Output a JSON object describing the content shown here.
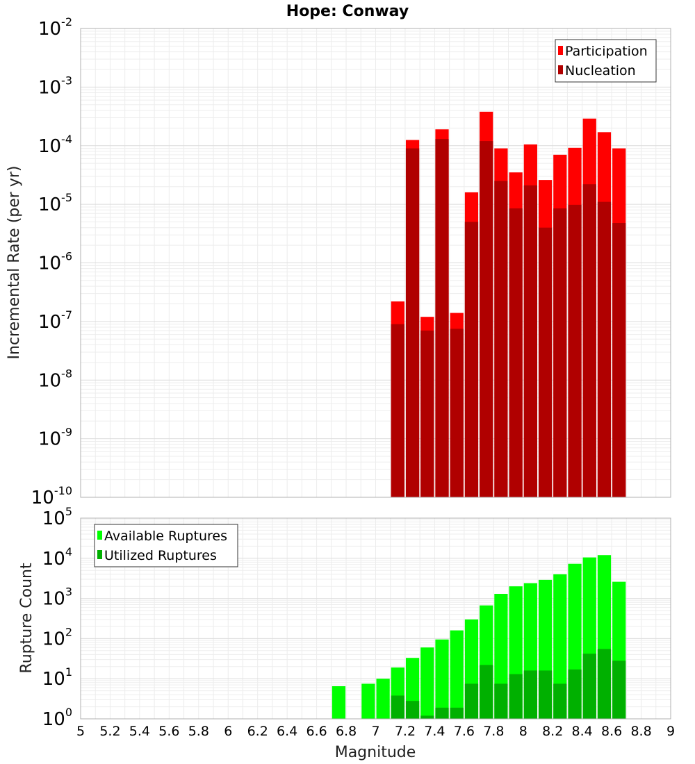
{
  "chart_data": [
    {
      "type": "bar",
      "title": "Hope: Conway",
      "xlabel": "Magnitude",
      "ylabel": "Incremental Rate (per yr)",
      "yscale": "log",
      "ylim": [
        1e-10,
        0.01
      ],
      "xlim": [
        5,
        9
      ],
      "y_tick_exponents": [
        "-10",
        "-9",
        "-8",
        "-7",
        "-6",
        "-5",
        "-4",
        "-3",
        "-2"
      ],
      "y_tick_base": "10",
      "grid": true,
      "legend_position": "top-right",
      "x": [
        7.15,
        7.25,
        7.35,
        7.45,
        7.55,
        7.65,
        7.75,
        7.85,
        7.95,
        8.05,
        8.15,
        8.25,
        8.35,
        8.45,
        8.55,
        8.65
      ],
      "series": [
        {
          "name": "Participation",
          "color": "#ff0000",
          "values": [
            2.2e-07,
            0.000125,
            1.2e-07,
            0.00019,
            1.4e-07,
            1.6e-05,
            0.00038,
            9e-05,
            3.5e-05,
            0.000105,
            2.6e-05,
            7e-05,
            9.2e-05,
            0.00029,
            0.00017,
            9e-05
          ]
        },
        {
          "name": "Nucleation",
          "color": "#b00000",
          "values": [
            9e-08,
            9e-05,
            7e-08,
            0.00013,
            7.5e-08,
            5e-06,
            0.00012,
            2.5e-05,
            8.5e-06,
            2.1e-05,
            4e-06,
            8.5e-06,
            9.8e-06,
            2.2e-05,
            1.1e-05,
            4.8e-06
          ]
        }
      ]
    },
    {
      "type": "bar",
      "xlabel": "Magnitude",
      "ylabel": "Rupture Count",
      "yscale": "log",
      "ylim": [
        1,
        100000
      ],
      "xlim": [
        5,
        9
      ],
      "y_tick_exponents": [
        "0",
        "1",
        "2",
        "3",
        "4",
        "5"
      ],
      "y_tick_base": "10",
      "x_ticks": [
        "5",
        "5.2",
        "5.4",
        "5.6",
        "5.8",
        "6",
        "6.2",
        "6.4",
        "6.6",
        "6.8",
        "7",
        "7.2",
        "7.4",
        "7.6",
        "7.8",
        "8",
        "8.2",
        "8.4",
        "8.6",
        "8.8",
        "9"
      ],
      "grid": true,
      "legend_position": "top-left",
      "x": [
        6.75,
        6.95,
        7.05,
        7.15,
        7.25,
        7.35,
        7.45,
        7.55,
        7.65,
        7.75,
        7.85,
        7.95,
        8.05,
        8.15,
        8.25,
        8.35,
        8.45,
        8.55,
        8.65
      ],
      "series": [
        {
          "name": "Available Ruptures",
          "color": "#00ff00",
          "values": [
            6.5,
            7.5,
            10,
            19,
            33,
            60,
            95,
            160,
            300,
            670,
            1300,
            2000,
            2400,
            2900,
            4000,
            7300,
            10500,
            12000,
            2600
          ]
        },
        {
          "name": "Utilized Ruptures",
          "color": "#00b000",
          "values": [
            null,
            null,
            null,
            3.8,
            2.8,
            1.2,
            1.9,
            1.9,
            7.5,
            22,
            7.5,
            13,
            16,
            16,
            7.5,
            17,
            42,
            55,
            28
          ]
        }
      ]
    }
  ]
}
